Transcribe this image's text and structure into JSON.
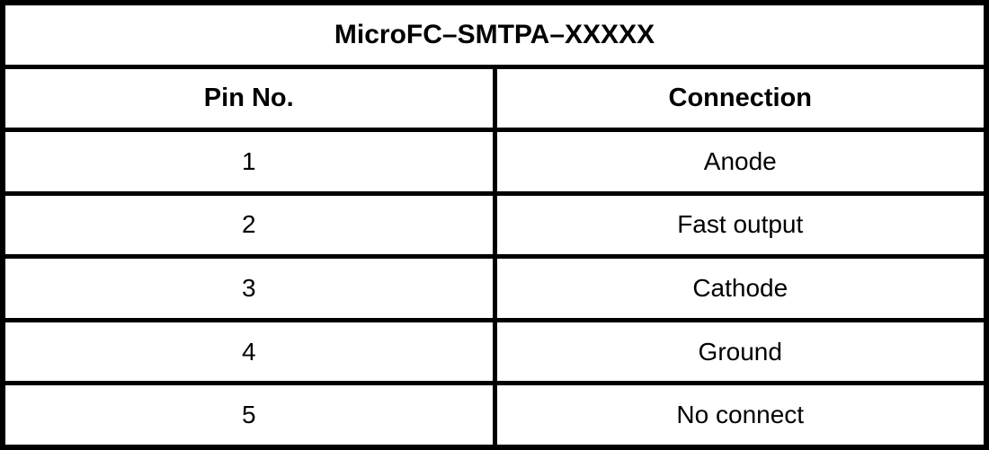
{
  "table": {
    "title": "MicroFC–SMTPA–XXXXX",
    "headers": {
      "pin": "Pin No.",
      "connection": "Connection"
    },
    "rows": [
      {
        "pin": "1",
        "connection": "Anode"
      },
      {
        "pin": "2",
        "connection": "Fast output"
      },
      {
        "pin": "3",
        "connection": "Cathode"
      },
      {
        "pin": "4",
        "connection": "Ground"
      },
      {
        "pin": "5",
        "connection": "No connect"
      }
    ],
    "colors": {
      "border": "#000000",
      "cell_background": "#ffffff",
      "text": "#000000"
    }
  }
}
